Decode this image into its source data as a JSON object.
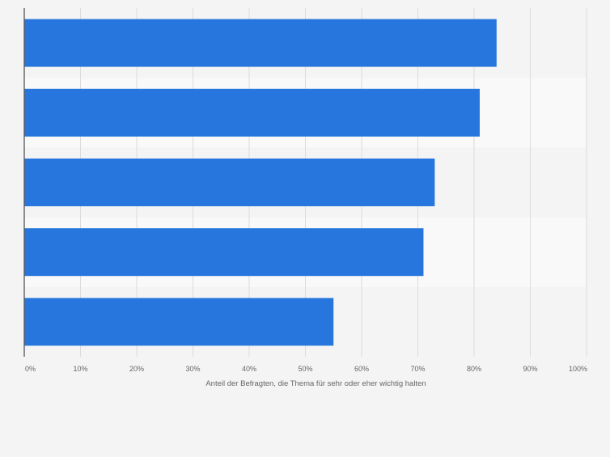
{
  "colors": {
    "background": "#f4f4f4",
    "band_light": "#f9f9f9",
    "bar": "#2676dd",
    "grid": "#dcdcdc",
    "axis": "#555555",
    "text": "#666666"
  },
  "chart_data": {
    "type": "bar",
    "orientation": "horizontal",
    "categories": [
      "",
      "",
      "",
      "",
      ""
    ],
    "values": [
      84,
      81,
      73,
      71,
      55
    ],
    "xlabel": "Anteil der Befragten, die Thema für sehr oder eher wichtig halten",
    "ylabel": "",
    "xlim": [
      0,
      100
    ],
    "ticks": [
      0,
      10,
      20,
      30,
      40,
      50,
      60,
      70,
      80,
      90,
      100
    ],
    "tick_labels": [
      "0%",
      "10%",
      "20%",
      "30%",
      "40%",
      "50%",
      "60%",
      "70%",
      "80%",
      "90%",
      "100%"
    ],
    "grid": true,
    "legend": "none"
  }
}
